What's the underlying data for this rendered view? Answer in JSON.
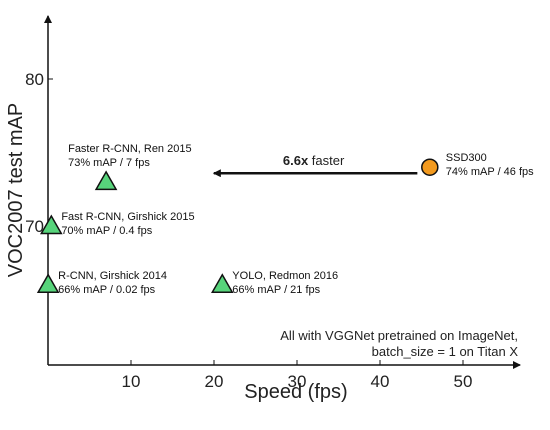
{
  "chart_data": {
    "type": "scatter",
    "xlabel": "Speed (fps)",
    "ylabel": "VOC2007 test mAP",
    "xlim": [
      0,
      58
    ],
    "ylim": [
      62,
      82
    ],
    "x_ticks": [
      10,
      20,
      30,
      40,
      50
    ],
    "y_ticks": [
      70,
      80
    ],
    "points": [
      {
        "x": 7,
        "y": 73,
        "line1": "Faster R-CNN, Ren 2015",
        "line2": "73% mAP / 7 fps",
        "marker": "triangle",
        "color": "#57d47b"
      },
      {
        "x": 0.4,
        "y": 70,
        "line1": "Fast R-CNN, Girshick 2015",
        "line2": "70% mAP / 0.4 fps",
        "marker": "triangle",
        "color": "#57d47b"
      },
      {
        "x": 0.02,
        "y": 66,
        "line1": "R-CNN, Girshick 2014",
        "line2": "66% mAP / 0.02 fps",
        "marker": "triangle",
        "color": "#57d47b"
      },
      {
        "x": 21,
        "y": 66,
        "line1": "YOLO, Redmon 2016",
        "line2": "66% mAP / 21 fps",
        "marker": "triangle",
        "color": "#57d47b"
      },
      {
        "x": 46,
        "y": 74,
        "line1": "SSD300",
        "line2": "74% mAP / 46 fps",
        "marker": "circle",
        "color": "#f39a1e"
      }
    ],
    "arrow": {
      "from_x": 44.5,
      "to_x": 19.5,
      "y": 74,
      "label_bold": "6.6x",
      "label_rest": " faster"
    },
    "note": [
      "All with VGGNet pretrained on ImageNet,",
      "batch_size = 1 on Titan X"
    ]
  }
}
